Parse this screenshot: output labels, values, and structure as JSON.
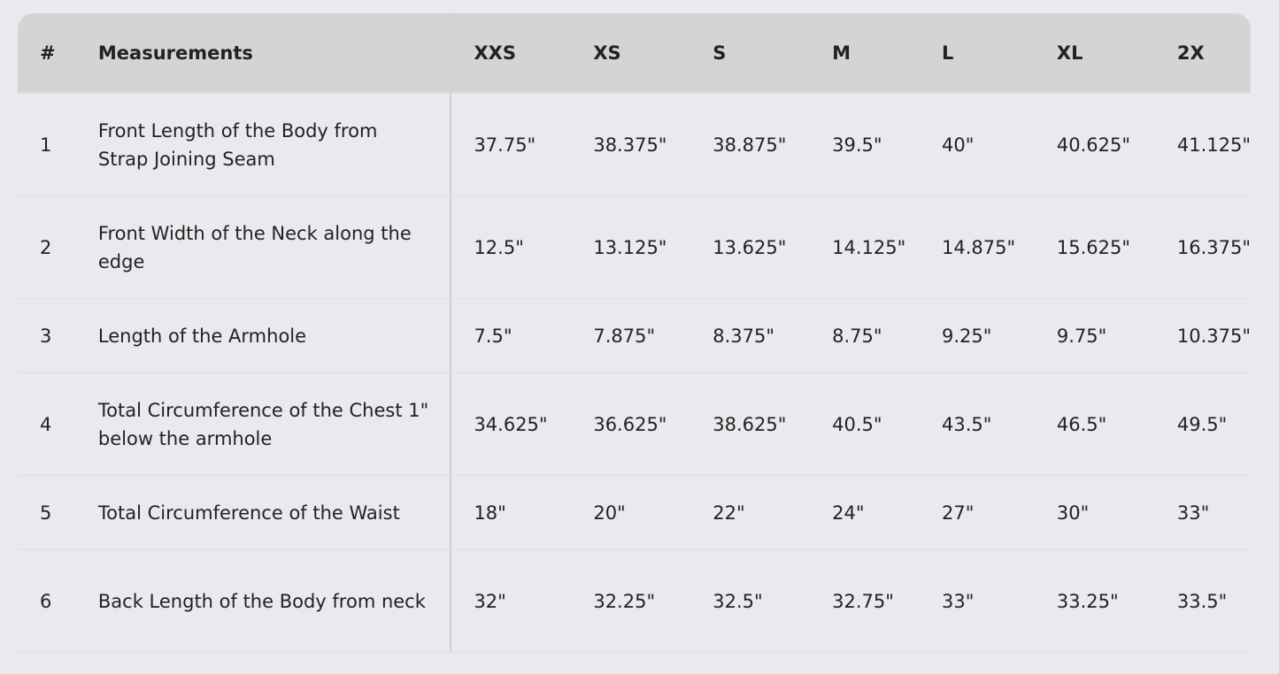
{
  "headers": [
    "#",
    "Measurements",
    "XXS",
    "XS",
    "S",
    "M",
    "L",
    "XL",
    "2X"
  ],
  "rows": [
    {
      "h": 116,
      "cells": [
        "1",
        "Front Length of the Body from Strap Joining Seam",
        "37.75\"",
        "38.375\"",
        "38.875\"",
        "39.5\"",
        "40\"",
        "40.625\"",
        "41.125\""
      ]
    },
    {
      "h": 116,
      "cells": [
        "2",
        "Front Width of the Neck along the edge",
        "12.5\"",
        "13.125\"",
        "13.625\"",
        "14.125\"",
        "14.875\"",
        "15.625\"",
        "16.375\""
      ]
    },
    {
      "h": 84,
      "cells": [
        "3",
        "Length of the Armhole",
        "7.5\"",
        "7.875\"",
        "8.375\"",
        "8.75\"",
        "9.25\"",
        "9.75\"",
        "10.375\""
      ]
    },
    {
      "h": 116,
      "cells": [
        "4",
        "Total Circumference of the Chest 1\" below the armhole",
        "34.625\"",
        "36.625\"",
        "38.625\"",
        "40.5\"",
        "43.5\"",
        "46.5\"",
        "49.5\""
      ]
    },
    {
      "h": 84,
      "cells": [
        "5",
        "Total Circumference of the Waist",
        "18\"",
        "20\"",
        "22\"",
        "24\"",
        "27\"",
        "30\"",
        "33\""
      ]
    },
    {
      "h": 116,
      "cells": [
        "6",
        "Back Length of the Body from neck",
        "32\"",
        "32.25\"",
        "32.5\"",
        "32.75\"",
        "33\"",
        "33.25\"",
        "33.5\""
      ]
    }
  ]
}
